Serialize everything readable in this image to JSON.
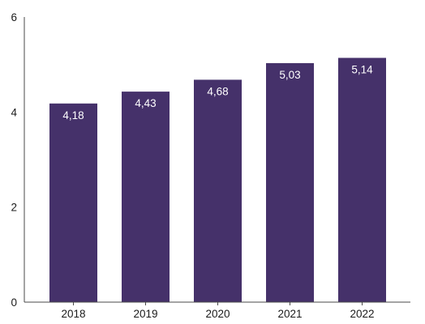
{
  "chart_data": {
    "type": "bar",
    "categories": [
      "2018",
      "2019",
      "2020",
      "2021",
      "2022"
    ],
    "values": [
      4.18,
      4.43,
      4.68,
      5.03,
      5.14
    ],
    "data_labels": [
      "4,18",
      "4,43",
      "4,68",
      "5,03",
      "5,14"
    ],
    "y_ticks": [
      0,
      2,
      4,
      6
    ],
    "y_tick_labels": [
      "0",
      "2",
      "4",
      "6"
    ],
    "ylim": [
      0,
      6
    ],
    "title": "",
    "xlabel": "",
    "ylabel": "",
    "grid": false,
    "bar_color": "#45316a",
    "label_color": "#ffffff",
    "axis_color": "#4a4a4a"
  }
}
